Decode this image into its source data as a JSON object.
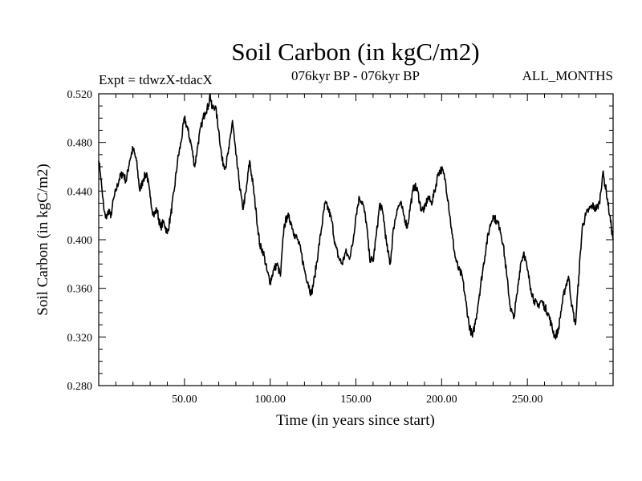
{
  "chart_data": {
    "type": "line",
    "title": "Soil Carbon (in kgC/m2)",
    "subtitle_left": "Expt = tdwzX-tdacX",
    "subtitle_center": "076kyr BP - 076kyr BP",
    "subtitle_right": "ALL_MONTHS",
    "xlabel": "Time (in years since start)",
    "ylabel": "Soil Carbon (in kgC/m2)",
    "xlim": [
      0,
      300
    ],
    "ylim": [
      0.28,
      0.52
    ],
    "x_ticks": [
      50,
      100,
      150,
      200,
      250
    ],
    "x_tick_labels": [
      "50.00",
      "100.00",
      "150.00",
      "200.00",
      "250.00"
    ],
    "y_ticks": [
      0.28,
      0.32,
      0.36,
      0.4,
      0.44,
      0.48,
      0.52
    ],
    "y_tick_labels": [
      "0.280",
      "0.320",
      "0.360",
      "0.400",
      "0.440",
      "0.480",
      "0.520"
    ],
    "grid": false,
    "line_color": "#000000",
    "series": [
      {
        "x": [
          0,
          1,
          2,
          3,
          4,
          5,
          6,
          7,
          8,
          9,
          10,
          12,
          14,
          16,
          18,
          20,
          22,
          24,
          26,
          28,
          30,
          32,
          34,
          36,
          38,
          40,
          42,
          44,
          46,
          48,
          50,
          52,
          54,
          56,
          58,
          60,
          62,
          64,
          65,
          66,
          68,
          70,
          72,
          74,
          76,
          78,
          80,
          82,
          84,
          86,
          88,
          90,
          92,
          94,
          96,
          98,
          100,
          102,
          104,
          106,
          108,
          110,
          112,
          114,
          116,
          118,
          120,
          122,
          124,
          126,
          128,
          130,
          132,
          134,
          136,
          138,
          140,
          142,
          144,
          146,
          148,
          150,
          152,
          154,
          156,
          158,
          160,
          162,
          164,
          166,
          168,
          170,
          172,
          174,
          176,
          178,
          180,
          182,
          184,
          186,
          188,
          190,
          192,
          194,
          196,
          198,
          200,
          202,
          204,
          206,
          208,
          210,
          212,
          214,
          216,
          218,
          220,
          222,
          224,
          226,
          228,
          230,
          232,
          234,
          236,
          238,
          240,
          242,
          244,
          246,
          248,
          250,
          252,
          254,
          256,
          258,
          260,
          262,
          264,
          266,
          268,
          270,
          272,
          274,
          276,
          278,
          280,
          282,
          284,
          286,
          288,
          290,
          292,
          294,
          296,
          298,
          300
        ],
        "y": [
          0.465,
          0.455,
          0.44,
          0.425,
          0.418,
          0.42,
          0.425,
          0.418,
          0.428,
          0.435,
          0.44,
          0.45,
          0.455,
          0.448,
          0.465,
          0.475,
          0.465,
          0.44,
          0.45,
          0.455,
          0.435,
          0.42,
          0.425,
          0.41,
          0.415,
          0.405,
          0.42,
          0.44,
          0.465,
          0.48,
          0.5,
          0.49,
          0.478,
          0.46,
          0.48,
          0.495,
          0.505,
          0.51,
          0.52,
          0.508,
          0.51,
          0.49,
          0.465,
          0.46,
          0.475,
          0.498,
          0.47,
          0.447,
          0.425,
          0.44,
          0.465,
          0.445,
          0.42,
          0.395,
          0.39,
          0.375,
          0.365,
          0.375,
          0.38,
          0.37,
          0.41,
          0.42,
          0.415,
          0.405,
          0.4,
          0.39,
          0.375,
          0.365,
          0.355,
          0.37,
          0.39,
          0.41,
          0.43,
          0.425,
          0.415,
          0.395,
          0.385,
          0.38,
          0.39,
          0.385,
          0.395,
          0.42,
          0.435,
          0.43,
          0.415,
          0.385,
          0.382,
          0.405,
          0.43,
          0.42,
          0.395,
          0.38,
          0.41,
          0.425,
          0.43,
          0.42,
          0.41,
          0.43,
          0.445,
          0.44,
          0.425,
          0.425,
          0.435,
          0.43,
          0.44,
          0.455,
          0.458,
          0.45,
          0.43,
          0.405,
          0.385,
          0.375,
          0.37,
          0.35,
          0.33,
          0.32,
          0.335,
          0.355,
          0.375,
          0.395,
          0.41,
          0.42,
          0.415,
          0.41,
          0.395,
          0.37,
          0.345,
          0.335,
          0.355,
          0.38,
          0.39,
          0.375,
          0.36,
          0.35,
          0.345,
          0.35,
          0.345,
          0.34,
          0.33,
          0.32,
          0.325,
          0.345,
          0.36,
          0.37,
          0.345,
          0.33,
          0.37,
          0.41,
          0.42,
          0.425,
          0.428,
          0.425,
          0.43,
          0.455,
          0.44,
          0.42,
          0.4
        ]
      }
    ]
  }
}
